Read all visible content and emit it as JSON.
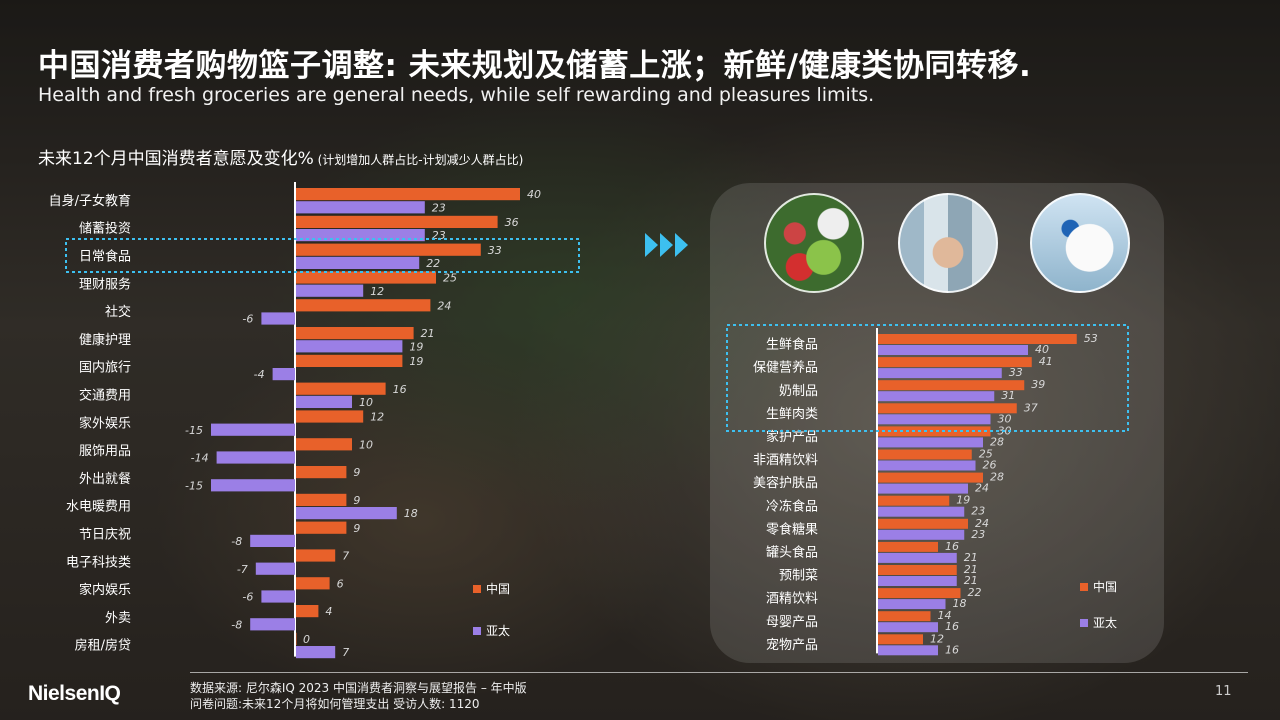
{
  "title": "中国消费者购物篮子调整: 未来规划及储蓄上涨；新鲜/健康类协同转移.",
  "subtitle": "Health and fresh groceries are general needs, while self rewarding and pleasures limits.",
  "chart_heading": "未来12个月中国消费者意愿及变化%",
  "chart_heading_note": " (计划增加人群占比-计划减少人群占比)",
  "colors": {
    "china": "#e8612a",
    "apac": "#9b7fe6",
    "highlight": "#3dc0f0"
  },
  "chart_data": [
    {
      "type": "bar",
      "orientation": "horizontal",
      "categories": [
        "自身/子女教育",
        "储蓄投资",
        "日常食品",
        "理财服务",
        "社交",
        "健康护理",
        "国内旅行",
        "交通费用",
        "家外娱乐",
        "服饰用品",
        "外出就餐",
        "水电暖费用",
        "节日庆祝",
        "电子科技类",
        "家内娱乐",
        "外卖",
        "房租/房贷"
      ],
      "series": [
        {
          "name": "中国",
          "values": [
            40,
            36,
            33,
            25,
            24,
            21,
            19,
            16,
            12,
            10,
            9,
            9,
            9,
            7,
            6,
            4,
            0
          ]
        },
        {
          "name": "亚太",
          "values": [
            23,
            23,
            22,
            12,
            -6,
            19,
            -4,
            10,
            -15,
            -14,
            -15,
            18,
            -8,
            -7,
            -6,
            -8,
            7
          ]
        }
      ],
      "highlighted_category": "日常食品",
      "legend_position": "bottom-right"
    },
    {
      "type": "bar",
      "orientation": "horizontal",
      "categories": [
        "生鲜食品",
        "保健营养品",
        "奶制品",
        "生鲜肉类",
        "家护产品",
        "非酒精饮料",
        "美容护肤品",
        "冷冻食品",
        "零食糖果",
        "罐头食品",
        "预制菜",
        "酒精饮料",
        "母婴产品",
        "宠物产品"
      ],
      "series": [
        {
          "name": "中国",
          "values": [
            53,
            41,
            39,
            37,
            30,
            25,
            28,
            19,
            24,
            16,
            21,
            22,
            14,
            12
          ]
        },
        {
          "name": "亚太",
          "values": [
            40,
            33,
            31,
            30,
            28,
            26,
            24,
            23,
            23,
            21,
            21,
            18,
            16,
            16
          ]
        }
      ],
      "highlighted_categories": [
        "生鲜食品",
        "保健营养品",
        "奶制品",
        "生鲜肉类"
      ],
      "legend_position": "bottom-right"
    }
  ],
  "footer": {
    "source": "数据来源: 尼尔森IQ 2023 中国消费者洞察与展望报告 – 年中版",
    "question": "问卷问题:未来12个月将如何管理支出 受访人数: 1120",
    "logo": "NielsenIQ",
    "page_number": "11"
  }
}
